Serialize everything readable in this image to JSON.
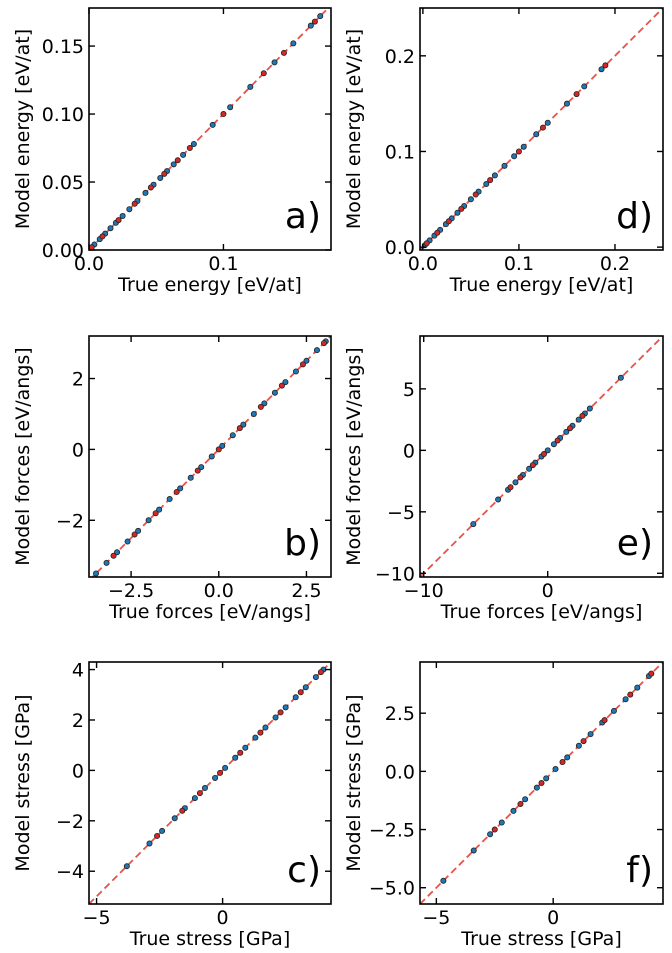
{
  "chart_data": [
    {
      "type": "scatter",
      "panel": "a)",
      "xlabel": "True energy [eV/at]",
      "ylabel": "Model energy [eV/at]",
      "xlim": [
        0,
        0.18
      ],
      "ylim": [
        0,
        0.178
      ],
      "xticks": [
        0.0,
        0.1
      ],
      "xtick_labels": [
        "0.0",
        "0.1"
      ],
      "yticks": [
        0.0,
        0.05,
        0.1,
        0.15
      ],
      "ytick_labels": [
        "0.00",
        "0.05",
        "0.10",
        "0.15"
      ],
      "diagonal": true,
      "series": [
        {
          "color": "#1f77b4",
          "x": [
            0.001,
            0.004,
            0.008,
            0.012,
            0.016,
            0.02,
            0.025,
            0.03,
            0.036,
            0.042,
            0.048,
            0.053,
            0.058,
            0.063,
            0.07,
            0.078,
            0.092,
            0.105,
            0.12,
            0.138,
            0.152,
            0.165,
            0.172
          ],
          "y": [
            0.001,
            0.004,
            0.008,
            0.012,
            0.016,
            0.02,
            0.025,
            0.03,
            0.036,
            0.042,
            0.048,
            0.053,
            0.058,
            0.063,
            0.07,
            0.078,
            0.092,
            0.105,
            0.12,
            0.138,
            0.152,
            0.165,
            0.172
          ]
        },
        {
          "color": "#d62728",
          "x": [
            0.002,
            0.01,
            0.022,
            0.034,
            0.046,
            0.056,
            0.066,
            0.075,
            0.1,
            0.13,
            0.145,
            0.168
          ],
          "y": [
            0.002,
            0.01,
            0.022,
            0.034,
            0.046,
            0.056,
            0.066,
            0.075,
            0.1,
            0.13,
            0.145,
            0.168
          ]
        }
      ]
    },
    {
      "type": "scatter",
      "panel": "b)",
      "xlabel": "True forces [eV/angs]",
      "ylabel": "Model forces [eV/angs]",
      "xlim": [
        -3.7,
        3.2
      ],
      "ylim": [
        -3.6,
        3.2
      ],
      "xticks": [
        -2.5,
        0.0,
        2.5
      ],
      "xtick_labels": [
        "−2.5",
        "0.0",
        "2.5"
      ],
      "yticks": [
        -2,
        0,
        2
      ],
      "ytick_labels": [
        "−2",
        "0",
        "2"
      ],
      "diagonal": true,
      "series": [
        {
          "color": "#1f77b4",
          "x": [
            -3.5,
            -3.2,
            -2.9,
            -2.6,
            -2.3,
            -2.0,
            -1.7,
            -1.4,
            -1.1,
            -0.8,
            -0.5,
            -0.2,
            0.1,
            0.4,
            0.7,
            1.0,
            1.3,
            1.6,
            1.9,
            2.2,
            2.5,
            2.8,
            3.05
          ],
          "y": [
            -3.5,
            -3.2,
            -2.9,
            -2.6,
            -2.3,
            -2.0,
            -1.7,
            -1.4,
            -1.1,
            -0.8,
            -0.5,
            -0.2,
            0.1,
            0.4,
            0.7,
            1.0,
            1.3,
            1.6,
            1.9,
            2.2,
            2.5,
            2.8,
            3.05
          ]
        },
        {
          "color": "#d62728",
          "x": [
            -3.0,
            -2.4,
            -1.8,
            -1.2,
            -0.6,
            0.0,
            0.6,
            1.2,
            1.8,
            2.4,
            3.0
          ],
          "y": [
            -3.0,
            -2.4,
            -1.8,
            -1.2,
            -0.6,
            0.0,
            0.6,
            1.2,
            1.8,
            2.4,
            3.0
          ]
        }
      ]
    },
    {
      "type": "scatter",
      "panel": "c)",
      "xlabel": "True stress [GPa]",
      "ylabel": "Model stress [GPa]",
      "xlim": [
        -5.3,
        4.3
      ],
      "ylim": [
        -5.3,
        4.3
      ],
      "xticks": [
        -5,
        0
      ],
      "xtick_labels": [
        "−5",
        "0"
      ],
      "yticks": [
        -4,
        -2,
        0,
        2,
        4
      ],
      "ytick_labels": [
        "−4",
        "−2",
        "0",
        "2",
        "4"
      ],
      "diagonal": true,
      "series": [
        {
          "color": "#1f77b4",
          "x": [
            -3.8,
            -2.9,
            -2.4,
            -1.9,
            -1.5,
            -1.1,
            -0.7,
            -0.3,
            0.1,
            0.5,
            0.9,
            1.3,
            1.7,
            2.1,
            2.5,
            2.9,
            3.3,
            3.7,
            4.0
          ],
          "y": [
            -3.8,
            -2.9,
            -2.4,
            -1.9,
            -1.5,
            -1.1,
            -0.7,
            -0.3,
            0.1,
            0.5,
            0.9,
            1.3,
            1.7,
            2.1,
            2.5,
            2.9,
            3.3,
            3.7,
            4.0
          ]
        },
        {
          "color": "#d62728",
          "x": [
            -2.6,
            -1.6,
            -0.9,
            -0.1,
            0.7,
            1.5,
            2.3,
            3.1,
            3.9
          ],
          "y": [
            -2.6,
            -1.6,
            -0.9,
            -0.1,
            0.7,
            1.5,
            2.3,
            3.1,
            3.9
          ]
        }
      ]
    },
    {
      "type": "scatter",
      "panel": "d)",
      "xlabel": "True energy [eV/at]",
      "ylabel": "Model energy [eV/at]",
      "xlim": [
        -0.003,
        0.25
      ],
      "ylim": [
        -0.003,
        0.25
      ],
      "xticks": [
        0.0,
        0.1,
        0.2
      ],
      "xtick_labels": [
        "0.0",
        "0.1",
        "0.2"
      ],
      "yticks": [
        0.0,
        0.1,
        0.2
      ],
      "ytick_labels": [
        "0.0",
        "0.1",
        "0.2"
      ],
      "diagonal": true,
      "series": [
        {
          "color": "#1f77b4",
          "x": [
            0.002,
            0.007,
            0.012,
            0.018,
            0.024,
            0.03,
            0.036,
            0.043,
            0.05,
            0.058,
            0.066,
            0.075,
            0.085,
            0.095,
            0.105,
            0.118,
            0.13,
            0.15,
            0.168,
            0.186
          ],
          "y": [
            0.002,
            0.007,
            0.012,
            0.018,
            0.024,
            0.03,
            0.036,
            0.043,
            0.05,
            0.058,
            0.066,
            0.075,
            0.085,
            0.095,
            0.105,
            0.118,
            0.13,
            0.15,
            0.168,
            0.186
          ]
        },
        {
          "color": "#d62728",
          "x": [
            0.004,
            0.015,
            0.027,
            0.04,
            0.055,
            0.07,
            0.1,
            0.125,
            0.16,
            0.19
          ],
          "y": [
            0.004,
            0.015,
            0.027,
            0.04,
            0.055,
            0.07,
            0.1,
            0.125,
            0.16,
            0.19
          ]
        }
      ]
    },
    {
      "type": "scatter",
      "panel": "e)",
      "xlabel": "True forces [eV/angs]",
      "ylabel": "Model forces [eV/angs]",
      "xlim": [
        -10.3,
        9.3
      ],
      "ylim": [
        -10.3,
        9.3
      ],
      "xticks": [
        -10,
        0
      ],
      "xtick_labels": [
        "−10",
        "0"
      ],
      "yticks": [
        -10,
        -5,
        0,
        5
      ],
      "ytick_labels": [
        "−10",
        "−5",
        "0",
        "5"
      ],
      "diagonal": true,
      "series": [
        {
          "color": "#1f77b4",
          "x": [
            -6.0,
            -4.0,
            -3.2,
            -2.6,
            -2.0,
            -1.5,
            -1.0,
            -0.5,
            0.0,
            0.5,
            1.0,
            1.5,
            2.0,
            2.5,
            3.0,
            3.4,
            5.9
          ],
          "y": [
            -6.0,
            -4.0,
            -3.2,
            -2.6,
            -2.0,
            -1.5,
            -1.0,
            -0.5,
            0.0,
            0.5,
            1.0,
            1.5,
            2.0,
            2.5,
            3.0,
            3.4,
            5.9
          ]
        },
        {
          "color": "#d62728",
          "x": [
            -3.0,
            -2.2,
            -1.2,
            -0.3,
            0.8,
            1.8,
            2.8
          ],
          "y": [
            -3.0,
            -2.2,
            -1.2,
            -0.3,
            0.8,
            1.8,
            2.8
          ]
        }
      ]
    },
    {
      "type": "scatter",
      "panel": "f)",
      "xlabel": "True stress [GPa]",
      "ylabel": "Model stress [GPa]",
      "xlim": [
        -5.7,
        4.7
      ],
      "ylim": [
        -5.7,
        4.7
      ],
      "xticks": [
        -5,
        0
      ],
      "xtick_labels": [
        "−5",
        "0"
      ],
      "yticks": [
        -5.0,
        -2.5,
        0.0,
        2.5
      ],
      "ytick_labels": [
        "−5.0",
        "−2.5",
        "0.0",
        "2.5"
      ],
      "diagonal": true,
      "series": [
        {
          "color": "#1f77b4",
          "x": [
            -4.7,
            -3.4,
            -2.7,
            -2.2,
            -1.7,
            -1.2,
            -0.7,
            -0.3,
            0.1,
            0.6,
            1.1,
            1.6,
            2.1,
            2.6,
            3.1,
            3.6,
            4.1
          ],
          "y": [
            -4.7,
            -3.4,
            -2.7,
            -2.2,
            -1.7,
            -1.2,
            -0.7,
            -0.3,
            0.1,
            0.6,
            1.1,
            1.6,
            2.1,
            2.6,
            3.1,
            3.6,
            4.1
          ]
        },
        {
          "color": "#d62728",
          "x": [
            -2.5,
            -1.4,
            -0.5,
            0.4,
            1.3,
            2.2,
            3.3,
            4.2
          ],
          "y": [
            -2.5,
            -1.4,
            -0.5,
            0.4,
            1.3,
            2.2,
            3.3,
            4.2
          ]
        }
      ]
    }
  ],
  "style": {
    "diagonal_color": "#e8524a",
    "point_edge": "#222222"
  }
}
